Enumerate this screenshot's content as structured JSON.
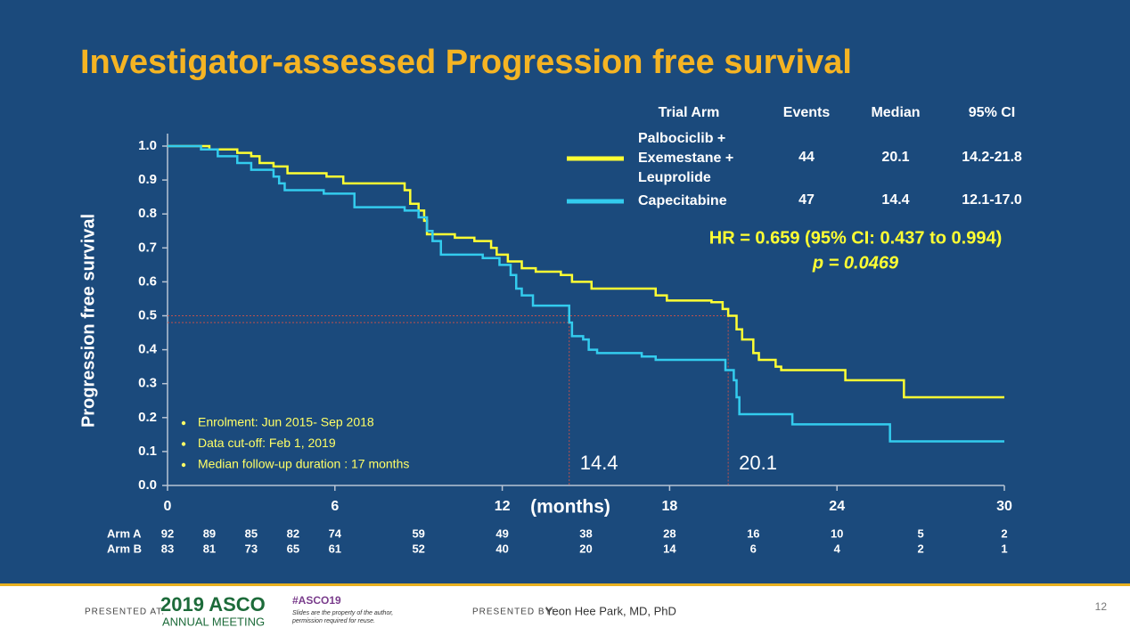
{
  "chart_data": {
    "type": "line",
    "step": "post",
    "title": "Investigator-assessed Progression free survival",
    "ylabel": "Progression free survival",
    "xlabel": "(months)",
    "xlim": [
      0,
      30
    ],
    "xticks": [
      0,
      6,
      12,
      18,
      24,
      30
    ],
    "ylim": [
      0,
      1
    ],
    "yticks": [
      {
        "value": 0,
        "label": "0.0"
      },
      0.1,
      0.2,
      0.3,
      0.4,
      0.5,
      0.6,
      0.7,
      0.8,
      0.9,
      {
        "value": 1,
        "label": "1.0"
      }
    ],
    "table_headers": [
      "Trial Arm",
      "Events",
      "Median",
      "95% CI"
    ],
    "series": [
      {
        "name": "Palbociclib + Exemestane + Leuprolide",
        "color": "#ffff33",
        "events": 44,
        "median": 20.1,
        "ci": "14.2-21.8",
        "x": [
          0,
          1.5,
          2.5,
          3,
          3.3,
          3.8,
          4.3,
          5.7,
          6.3,
          8.5,
          8.7,
          9,
          9.2,
          9.3,
          10.3,
          11,
          11.6,
          11.8,
          12.2,
          12.7,
          13.2,
          14.1,
          14.5,
          15.2,
          17.5,
          17.9,
          19.5,
          19.9,
          20.1,
          20.4,
          20.6,
          21,
          21.2,
          21.8,
          22,
          24.3,
          26.4,
          30
        ],
        "values": [
          1,
          0.99,
          0.98,
          0.97,
          0.95,
          0.94,
          0.92,
          0.91,
          0.89,
          0.87,
          0.83,
          0.81,
          0.78,
          0.74,
          0.73,
          0.72,
          0.7,
          0.68,
          0.66,
          0.64,
          0.63,
          0.62,
          0.6,
          0.58,
          0.56,
          0.545,
          0.54,
          0.52,
          0.5,
          0.46,
          0.43,
          0.39,
          0.37,
          0.35,
          0.34,
          0.31,
          0.26,
          0.26
        ]
      },
      {
        "name": "Capecitabine",
        "color": "#33ccee",
        "events": 47,
        "median": 14.4,
        "ci": "12.1-17.0",
        "x": [
          0,
          1.2,
          1.8,
          2.5,
          3,
          3.8,
          4,
          4.2,
          5.6,
          6.7,
          8.5,
          9,
          9.3,
          9.5,
          9.8,
          11.3,
          11.9,
          12.3,
          12.5,
          12.7,
          13.1,
          14.4,
          14.5,
          14.9,
          15.1,
          15.4,
          17,
          17.5,
          20,
          20.3,
          20.4,
          20.5,
          22.4,
          25.9,
          30
        ],
        "values": [
          1,
          0.99,
          0.97,
          0.95,
          0.93,
          0.91,
          0.89,
          0.87,
          0.86,
          0.82,
          0.81,
          0.79,
          0.75,
          0.72,
          0.68,
          0.67,
          0.65,
          0.62,
          0.58,
          0.56,
          0.53,
          0.48,
          0.44,
          0.43,
          0.4,
          0.39,
          0.38,
          0.37,
          0.34,
          0.31,
          0.26,
          0.21,
          0.18,
          0.13,
          0.13
        ]
      }
    ],
    "hr_text": "HR = 0.659 (95% CI: 0.437 to 0.994)",
    "p_text": "p = 0.0469",
    "bullets": [
      "Enrolment: Jun 2015- Sep 2018",
      "Data cut-off: Feb 1, 2019",
      "Median follow-up duration : 17 months"
    ],
    "at_risk": {
      "times": [
        0,
        1.5,
        3,
        4.5,
        6,
        9,
        12,
        15,
        18,
        21,
        24,
        27,
        30
      ],
      "rows": [
        {
          "name": "Arm A",
          "values": [
            92,
            89,
            85,
            82,
            74,
            59,
            49,
            38,
            28,
            16,
            10,
            5,
            2
          ]
        },
        {
          "name": "Arm B",
          "values": [
            83,
            81,
            73,
            65,
            61,
            52,
            40,
            20,
            14,
            6,
            4,
            2,
            1
          ]
        }
      ]
    }
  },
  "footer": {
    "presented_at": "PRESENTED AT:",
    "meeting_year_name": "2019 ASCO",
    "meeting_sub": "ANNUAL MEETING",
    "hashtag": "#ASCO19",
    "disclaimer": "Slides are the property of the author, permission required for reuse.",
    "presented_by": "PRESENTED BY:",
    "presenter": "Yeon Hee Park, MD, PhD",
    "page_number": "12"
  }
}
